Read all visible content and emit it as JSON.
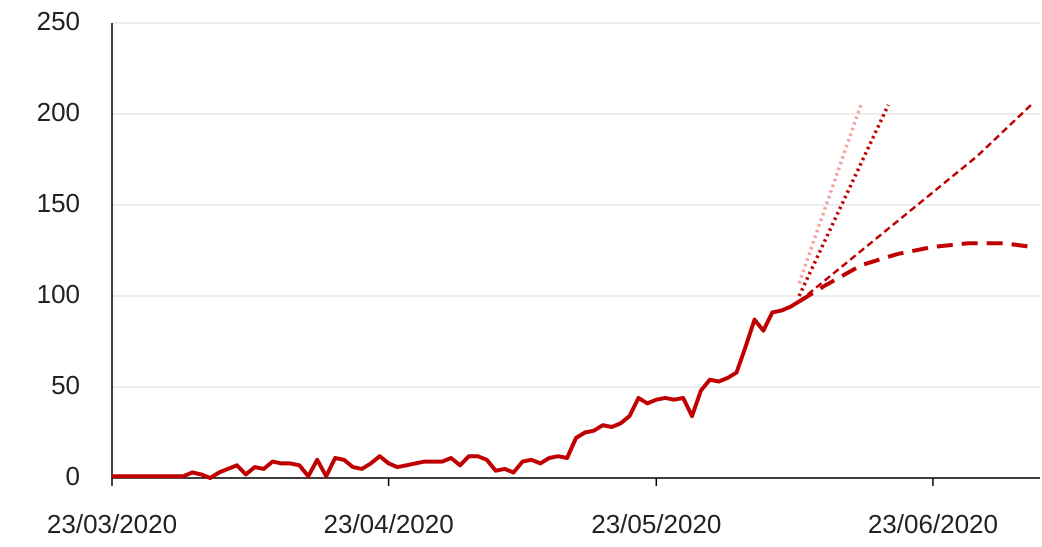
{
  "chart_data": {
    "type": "line",
    "xlim": [
      "2020-03-23",
      "2020-07-05"
    ],
    "xticks": [
      {
        "value": "2020-03-23",
        "label": "23/03/2020"
      },
      {
        "value": "2020-04-23",
        "label": "23/04/2020"
      },
      {
        "value": "2020-05-23",
        "label": "23/05/2020"
      },
      {
        "value": "2020-06-23",
        "label": "23/06/2020"
      }
    ],
    "ylim": [
      0,
      250
    ],
    "yticks": [
      0,
      50,
      100,
      150,
      200,
      250
    ],
    "grid": true,
    "series": [
      {
        "color": "#c00000",
        "width": 4,
        "dash": "solid",
        "x": [
          "2020-03-23",
          "2020-03-27",
          "2020-03-31",
          "2020-04-01",
          "2020-04-02",
          "2020-04-03",
          "2020-04-04",
          "2020-04-05",
          "2020-04-06",
          "2020-04-07",
          "2020-04-08",
          "2020-04-09",
          "2020-04-10",
          "2020-04-11",
          "2020-04-12",
          "2020-04-13",
          "2020-04-14",
          "2020-04-15",
          "2020-04-16",
          "2020-04-17",
          "2020-04-18",
          "2020-04-19",
          "2020-04-20",
          "2020-04-21",
          "2020-04-22",
          "2020-04-23",
          "2020-04-24",
          "2020-04-25",
          "2020-04-27",
          "2020-04-29",
          "2020-04-30",
          "2020-05-01",
          "2020-05-02",
          "2020-05-03",
          "2020-05-04",
          "2020-05-05",
          "2020-05-06",
          "2020-05-07",
          "2020-05-08",
          "2020-05-09",
          "2020-05-10",
          "2020-05-11",
          "2020-05-12",
          "2020-05-13",
          "2020-05-14",
          "2020-05-15",
          "2020-05-16",
          "2020-05-17",
          "2020-05-18",
          "2020-05-19",
          "2020-05-20",
          "2020-05-21",
          "2020-05-22",
          "2020-05-23",
          "2020-05-24",
          "2020-05-25",
          "2020-05-26",
          "2020-05-27",
          "2020-05-28",
          "2020-05-29",
          "2020-05-30",
          "2020-05-31",
          "2020-06-01",
          "2020-06-02",
          "2020-06-03",
          "2020-06-04",
          "2020-06-05",
          "2020-06-06",
          "2020-06-07",
          "2020-06-08"
        ],
        "values": [
          1,
          1,
          1,
          3,
          2,
          0,
          3,
          5,
          7,
          2,
          6,
          5,
          9,
          8,
          8,
          7,
          1,
          10,
          1,
          11,
          10,
          6,
          5,
          8,
          12,
          8,
          6,
          7,
          9,
          9,
          11,
          7,
          12,
          12,
          10,
          4,
          5,
          3,
          9,
          10,
          8,
          11,
          12,
          11,
          22,
          25,
          26,
          29,
          28,
          30,
          34,
          44,
          41,
          43,
          44,
          43,
          44,
          34,
          48,
          54,
          53,
          55,
          58,
          72,
          87,
          81,
          91,
          92,
          94,
          97
        ]
      },
      {
        "color": "#c00000",
        "width": 4,
        "dash": "dashed",
        "x": [
          "2020-06-08",
          "2020-06-11",
          "2020-06-15",
          "2020-06-19",
          "2020-06-23",
          "2020-06-27",
          "2020-07-01",
          "2020-07-04"
        ],
        "values": [
          97,
          106,
          117,
          123,
          127,
          129,
          129,
          127
        ]
      },
      {
        "color": "#c00000",
        "width": 2.5,
        "dash": "shortdash",
        "x": [
          "2020-06-08",
          "2020-06-13",
          "2020-06-18",
          "2020-06-23",
          "2020-06-28",
          "2020-07-04"
        ],
        "values": [
          97,
          117,
          137,
          157,
          177,
          205
        ]
      },
      {
        "color": "#c00000",
        "width": 3.5,
        "dash": "dotted",
        "x": [
          "2020-06-08",
          "2020-06-18"
        ],
        "values": [
          100,
          205
        ]
      },
      {
        "color": "#f4a0a0",
        "width": 3.5,
        "dash": "dotted",
        "x": [
          "2020-06-08",
          "2020-06-15"
        ],
        "values": [
          107,
          206
        ]
      }
    ]
  }
}
